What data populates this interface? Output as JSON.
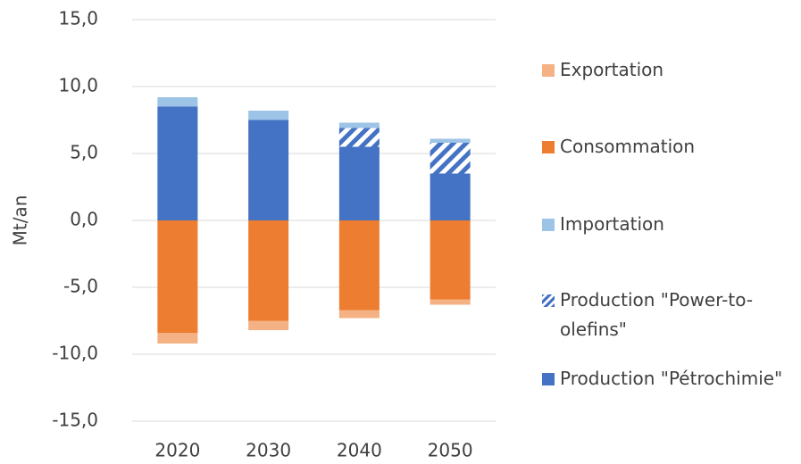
{
  "chart_data": {
    "type": "bar",
    "stacked": true,
    "ylabel": "Mt/an",
    "categories": [
      "2020",
      "2030",
      "2040",
      "2050"
    ],
    "series": [
      {
        "name": "Exportation",
        "color": "#f4b183",
        "values": [
          -0.8,
          -0.7,
          -0.6,
          -0.4
        ]
      },
      {
        "name": "Consommation",
        "color": "#ed7d31",
        "values": [
          -8.4,
          -7.5,
          -6.7,
          -5.9
        ]
      },
      {
        "name": "Importation",
        "color": "#9dc3e6",
        "values": [
          0.7,
          0.7,
          0.4,
          0.3
        ]
      },
      {
        "name": "Production \"Power-to-olefins\"",
        "color": "#4472c4",
        "hatch": true,
        "values": [
          0,
          0,
          1.4,
          2.3
        ]
      },
      {
        "name": "Production \"Pétrochimie\"",
        "color": "#4472c4",
        "values": [
          8.5,
          7.5,
          5.5,
          3.5
        ]
      }
    ],
    "ylim": [
      -15,
      15
    ],
    "yticks": [
      {
        "value": -15,
        "label": "-15,0"
      },
      {
        "value": -10,
        "label": "-10,0"
      },
      {
        "value": -5,
        "label": "-5,0"
      },
      {
        "value": 0,
        "label": "0,0"
      },
      {
        "value": 5,
        "label": "5,0"
      },
      {
        "value": 10,
        "label": "10,0"
      },
      {
        "value": 15,
        "label": "15,0"
      }
    ],
    "grid": true,
    "legend": "right"
  }
}
